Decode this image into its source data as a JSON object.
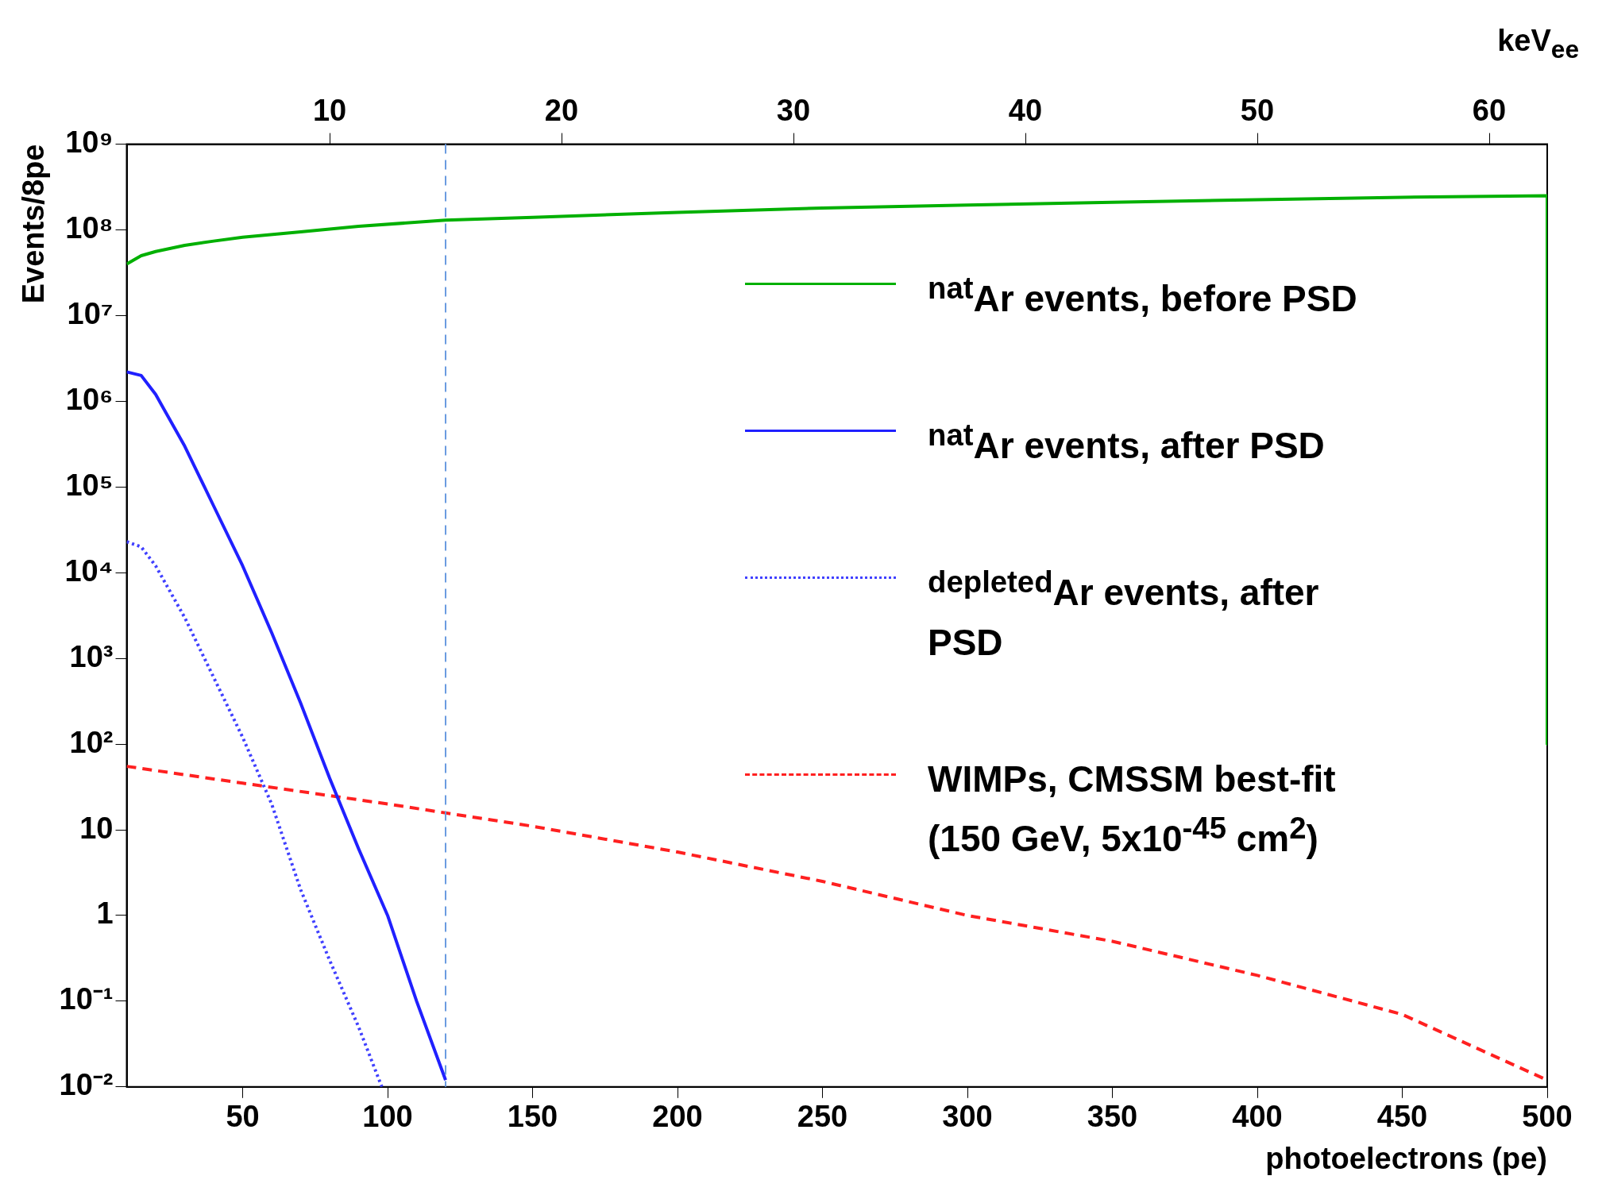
{
  "chart_data": {
    "type": "line",
    "xlabel": "photoelectrons (pe)",
    "ylabel": "Events/8pe",
    "x2label": "keV$_{ee}$",
    "xlim": [
      10,
      500
    ],
    "xticks": [
      50,
      100,
      150,
      200,
      250,
      300,
      350,
      400,
      450,
      500
    ],
    "x2lim": [
      1.25,
      62.5
    ],
    "x2ticks": [
      10,
      20,
      30,
      40,
      50,
      60
    ],
    "ylim": [
      0.01,
      1000000000
    ],
    "log": "y",
    "yticks": [
      {
        "value": 0.01,
        "label": "10⁻²"
      },
      {
        "value": 0.1,
        "label": "10⁻¹"
      },
      1,
      10,
      {
        "value": 100,
        "label": "10²"
      },
      {
        "value": 1000,
        "label": "10³"
      },
      {
        "value": 10000,
        "label": "10⁴"
      },
      {
        "value": 100000,
        "label": "10⁵"
      },
      {
        "value": 1000000,
        "label": "10⁶"
      },
      {
        "value": 10000000,
        "label": "10⁷"
      },
      {
        "value": 100000000,
        "label": "10⁸"
      },
      {
        "value": 1000000000,
        "label": "10⁹"
      }
    ],
    "grid": false,
    "legend": "top right",
    "marker": "none",
    "ref_lines": [
      {
        "axis": "x",
        "value": 120,
        "color": "#6a9be0",
        "line_style": "dashed"
      }
    ],
    "series": [
      {
        "name": "$^{nat}$Ar events, before PSD",
        "color": "#00b000",
        "line_style": "solid",
        "x": [
          10,
          15,
          20,
          30,
          40,
          50,
          70,
          90,
          120,
          150,
          200,
          250,
          300,
          350,
          400,
          450,
          500,
          500
        ],
        "values": [
          40000000,
          50000000,
          56000000,
          66000000,
          74000000,
          82000000,
          95000000,
          110000000,
          130000000,
          140000000,
          160000000,
          180000000,
          195000000,
          210000000,
          225000000,
          240000000,
          250000000,
          100
        ]
      },
      {
        "name": "$^{nat}$Ar events, after PSD",
        "color": "#2020ff",
        "line_style": "solid",
        "x": [
          10,
          15,
          20,
          30,
          40,
          50,
          60,
          70,
          80,
          90,
          100,
          110,
          120
        ],
        "values": [
          2200000,
          2000000,
          1200000,
          300000,
          60000,
          12000,
          2000,
          300,
          40,
          6,
          1,
          0.1,
          0.012
        ]
      },
      {
        "name": "$^{depleted}$Ar events, after PSD",
        "color": "#4040ff",
        "line_style": "dotted",
        "x": [
          10,
          15,
          20,
          30,
          40,
          50,
          60,
          70,
          80,
          90,
          98
        ],
        "values": [
          23000,
          20000,
          12000,
          3000,
          600,
          120,
          20,
          2,
          0.3,
          0.05,
          0.01
        ]
      },
      {
        "name": "WIMPs, CMSSM best-fit (150 GeV, 5x10$^{-45}$ cm$^{2}$)",
        "color": "#ff2020",
        "line_style": "dashed",
        "x": [
          10,
          50,
          100,
          150,
          200,
          250,
          300,
          350,
          400,
          450,
          500
        ],
        "values": [
          55,
          35,
          20,
          11,
          5.5,
          2.5,
          1,
          0.5,
          0.2,
          0.07,
          0.012
        ]
      }
    ]
  }
}
